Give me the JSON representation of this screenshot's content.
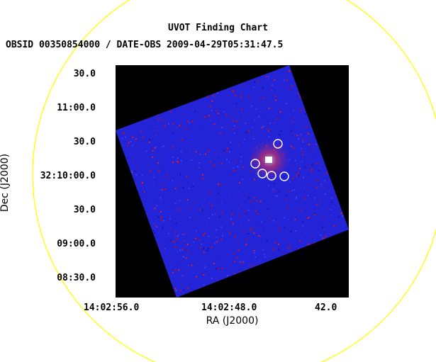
{
  "title": "UVOT Finding Chart",
  "subtitle": "OBSID 00350854000 / DATE-OBS 2009-04-29T05:31:47.5",
  "axes": {
    "ra_title": "RA (J2000)",
    "dec_title": "Dec (J2000)",
    "ra_ticks": [
      "14:02:56.0",
      "14:02:48.0",
      "42.0"
    ],
    "dec_ticks": [
      "30.0",
      "11:00.0",
      "30.0",
      "32:10:00.0",
      "30.0",
      "09:00.0",
      "08:30.0"
    ]
  },
  "colors": {
    "background": "#ffffff",
    "frame": "#000000",
    "field": "#2222dd",
    "noise": "#cc1111",
    "circle": "#ffff00",
    "markers": "#ffffff"
  }
}
